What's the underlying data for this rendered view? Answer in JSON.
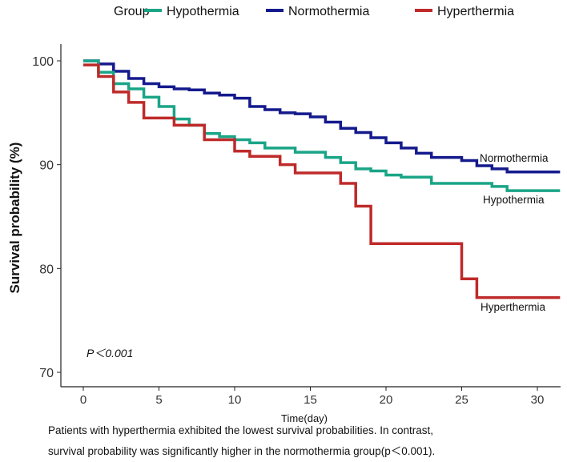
{
  "chart_data": {
    "type": "line",
    "subtype": "kaplan-meier step",
    "legend_title": "Group",
    "legend_position": "top",
    "xlabel": "Time(day)",
    "ylabel": "Survival probability (%)",
    "xlim": [
      -1.5,
      31.5
    ],
    "ylim": [
      68.5,
      102
    ],
    "xticks": [
      0,
      5,
      10,
      15,
      20,
      25,
      30
    ],
    "yticks": [
      70,
      80,
      90,
      100
    ],
    "annotation_p": "P＜0.001",
    "series": [
      {
        "name": "Hypothermia",
        "color": "#1aa587",
        "end_label": "Hypothermia",
        "x": [
          0,
          1,
          2,
          3,
          4,
          5,
          6,
          7,
          8,
          9,
          10,
          11,
          12,
          14,
          16,
          17,
          18,
          19,
          20,
          21,
          23,
          27,
          28,
          31.5
        ],
        "y": [
          100,
          98.9,
          97.8,
          97.3,
          96.5,
          95.6,
          94.4,
          93.8,
          93.0,
          92.7,
          92.4,
          92.1,
          91.6,
          91.2,
          90.7,
          90.2,
          89.6,
          89.4,
          89.0,
          88.8,
          88.2,
          87.9,
          87.5,
          87.5
        ]
      },
      {
        "name": "Normothermia",
        "color": "#141a8c",
        "end_label": "Normothermia",
        "x": [
          0,
          1,
          2,
          3,
          4,
          5,
          6,
          7,
          8,
          9,
          10,
          11,
          12,
          13,
          14,
          15,
          16,
          17,
          18,
          19,
          20,
          21,
          22,
          23,
          25,
          26,
          27,
          28,
          31.5
        ],
        "y": [
          100,
          99.7,
          99.0,
          98.3,
          97.8,
          97.5,
          97.3,
          97.2,
          96.9,
          96.7,
          96.4,
          95.6,
          95.3,
          95.0,
          94.9,
          94.6,
          94.1,
          93.5,
          93.1,
          92.6,
          92.1,
          91.6,
          91.1,
          90.7,
          90.4,
          89.9,
          89.6,
          89.3,
          89.3
        ]
      },
      {
        "name": "Hyperthermia",
        "color": "#bf2a2a",
        "end_label": "Hyperthermia",
        "x": [
          0,
          1,
          2,
          3,
          4,
          6,
          8,
          10,
          11,
          13,
          14,
          17,
          18,
          19,
          25,
          26,
          31.5
        ],
        "y": [
          99.6,
          98.5,
          97.0,
          96.0,
          94.5,
          93.8,
          92.4,
          91.3,
          90.8,
          90.0,
          89.2,
          88.2,
          86.0,
          82.4,
          79.0,
          77.2,
          77.2
        ]
      }
    ]
  },
  "caption": {
    "line1": "Patients with hyperthermia exhibited the lowest survival probabilities. In contrast,",
    "line2": "survival probability was significantly higher in the normothermia group(p＜0.001)."
  }
}
